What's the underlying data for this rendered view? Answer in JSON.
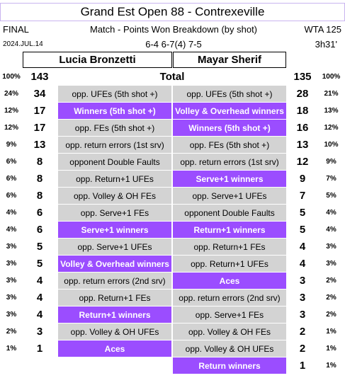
{
  "header": {
    "title": "Grand Est Open 88 - Contrexeville",
    "status": "FINAL",
    "subtitle": "Match - Points Won Breakdown (by shot)",
    "tour": "WTA 125",
    "date": "2024.JUL.14",
    "score": "6-4 6-7(4) 7-5",
    "duration": "3h31'"
  },
  "players": [
    "Lucia Bronzetti",
    "Mayar Sherif"
  ],
  "total": {
    "pct_left": "100%",
    "count_left": 143,
    "label": "Total",
    "count_right": 135,
    "pct_right": "100%"
  },
  "left_rows": [
    {
      "pct": "24%",
      "count": 34,
      "label": "opp. UFEs (5th shot +)",
      "color": "#d3d3d3"
    },
    {
      "pct": "12%",
      "count": 17,
      "label": "Winners (5th shot +)",
      "color": "#9b4dff"
    },
    {
      "pct": "12%",
      "count": 17,
      "label": "opp. FEs (5th shot +)",
      "color": "#d3d3d3"
    },
    {
      "pct": "9%",
      "count": 13,
      "label": "opp. return errors (1st srv)",
      "color": "#d3d3d3"
    },
    {
      "pct": "6%",
      "count": 8,
      "label": "opponent Double Faults",
      "color": "#d3d3d3"
    },
    {
      "pct": "6%",
      "count": 8,
      "label": "opp. Return+1 UFEs",
      "color": "#d3d3d3"
    },
    {
      "pct": "6%",
      "count": 8,
      "label": "opp. Volley & OH FEs",
      "color": "#d3d3d3"
    },
    {
      "pct": "4%",
      "count": 6,
      "label": "opp. Serve+1 FEs",
      "color": "#d3d3d3"
    },
    {
      "pct": "4%",
      "count": 6,
      "label": "Serve+1 winners",
      "color": "#9b4dff"
    },
    {
      "pct": "3%",
      "count": 5,
      "label": "opp. Serve+1 UFEs",
      "color": "#d3d3d3"
    },
    {
      "pct": "3%",
      "count": 5,
      "label": "Volley & Overhead winners",
      "color": "#9b4dff"
    },
    {
      "pct": "3%",
      "count": 4,
      "label": "opp. return errors (2nd srv)",
      "color": "#d3d3d3"
    },
    {
      "pct": "3%",
      "count": 4,
      "label": "opp. Return+1 FEs",
      "color": "#d3d3d3"
    },
    {
      "pct": "3%",
      "count": 4,
      "label": "Return+1 winners",
      "color": "#9b4dff"
    },
    {
      "pct": "2%",
      "count": 3,
      "label": "opp. Volley & OH UFEs",
      "color": "#d3d3d3"
    },
    {
      "pct": "1%",
      "count": 1,
      "label": "Aces",
      "color": "#9b4dff"
    }
  ],
  "right_rows": [
    {
      "label": "opp. UFEs (5th shot +)",
      "count": 28,
      "pct": "21%",
      "color": "#d3d3d3"
    },
    {
      "label": "Volley & Overhead winners",
      "count": 18,
      "pct": "13%",
      "color": "#9b4dff"
    },
    {
      "label": "Winners (5th shot +)",
      "count": 16,
      "pct": "12%",
      "color": "#9b4dff"
    },
    {
      "label": "opp. FEs (5th shot +)",
      "count": 13,
      "pct": "10%",
      "color": "#d3d3d3"
    },
    {
      "label": "opp. return errors (1st srv)",
      "count": 12,
      "pct": "9%",
      "color": "#d3d3d3"
    },
    {
      "label": "Serve+1 winners",
      "count": 9,
      "pct": "7%",
      "color": "#9b4dff"
    },
    {
      "label": "opp. Serve+1 UFEs",
      "count": 7,
      "pct": "5%",
      "color": "#d3d3d3"
    },
    {
      "label": "opponent Double Faults",
      "count": 5,
      "pct": "4%",
      "color": "#d3d3d3"
    },
    {
      "label": "Return+1 winners",
      "count": 5,
      "pct": "4%",
      "color": "#9b4dff"
    },
    {
      "label": "opp. Return+1 FEs",
      "count": 4,
      "pct": "3%",
      "color": "#d3d3d3"
    },
    {
      "label": "opp. Return+1 UFEs",
      "count": 4,
      "pct": "3%",
      "color": "#d3d3d3"
    },
    {
      "label": "Aces",
      "count": 3,
      "pct": "2%",
      "color": "#9b4dff"
    },
    {
      "label": "opp. return errors (2nd srv)",
      "count": 3,
      "pct": "2%",
      "color": "#d3d3d3"
    },
    {
      "label": "opp. Serve+1 FEs",
      "count": 3,
      "pct": "2%",
      "color": "#d3d3d3"
    },
    {
      "label": "opp. Volley & OH FEs",
      "count": 2,
      "pct": "1%",
      "color": "#d3d3d3"
    },
    {
      "label": "opp. Volley & OH UFEs",
      "count": 2,
      "pct": "1%",
      "color": "#d3d3d3"
    },
    {
      "label": "Return winners",
      "count": 1,
      "pct": "1%",
      "color": "#9b4dff"
    }
  ]
}
